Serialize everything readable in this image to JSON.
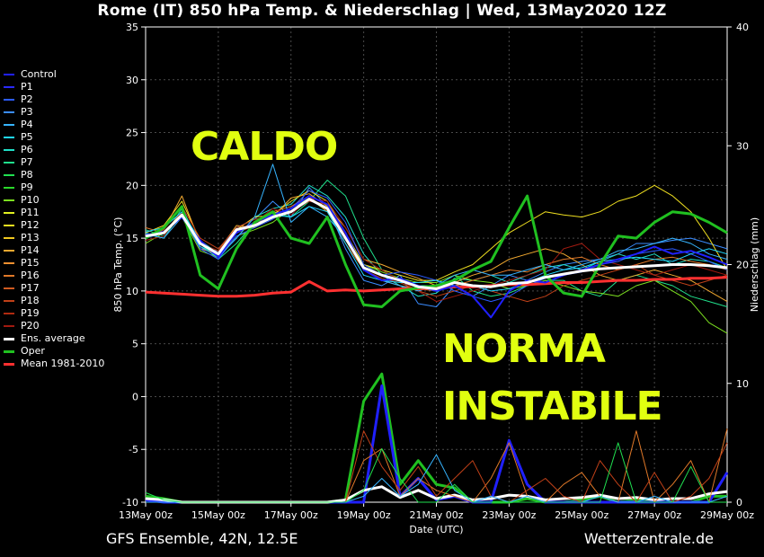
{
  "title": "Rome  (IT)  850 hPa Temp. & Niederschlag | Wed, 13May2020 12Z",
  "footer": {
    "left": "GFS Ensemble, 42N, 12.5E",
    "right": "Wetterzentrale.de"
  },
  "annotations": [
    "CALDO",
    "NORMA",
    "INSTABILE"
  ],
  "chart_data": {
    "type": "line",
    "xlabel": "Date (UTC)",
    "ylabel": "850 hPa Temp. (°C)",
    "y2label": "Niederschlag (mm)",
    "ylim": [
      -10,
      35
    ],
    "y2lim": [
      0,
      40
    ],
    "yticks": [
      -10,
      -5,
      0,
      5,
      10,
      15,
      20,
      25,
      30,
      35
    ],
    "y2ticks": [
      0,
      10,
      20,
      30,
      40
    ],
    "xlim": [
      0,
      16
    ],
    "xtick_positions": [
      0,
      2,
      4,
      6,
      8,
      10,
      12,
      14,
      16
    ],
    "xtick_labels": [
      "13May 00z",
      "15May 00z",
      "17May 00z",
      "19May 00z",
      "21May 00z",
      "23May 00z",
      "25May 00z",
      "27May 00z",
      "29May 00z"
    ],
    "grid": true,
    "legend_position": "left",
    "legend": [
      {
        "name": "Control",
        "color": "#2020ff"
      },
      {
        "name": "P1",
        "color": "#2a2aff"
      },
      {
        "name": "P2",
        "color": "#2c5cff"
      },
      {
        "name": "P3",
        "color": "#3a8cff"
      },
      {
        "name": "P4",
        "color": "#36b4ff"
      },
      {
        "name": "P5",
        "color": "#20d8ff"
      },
      {
        "name": "P6",
        "color": "#20e0c8"
      },
      {
        "name": "P7",
        "color": "#20e08c"
      },
      {
        "name": "P8",
        "color": "#20e050"
      },
      {
        "name": "P9",
        "color": "#2ad82a"
      },
      {
        "name": "P10",
        "color": "#7ce020"
      },
      {
        "name": "P11",
        "color": "#e0f020"
      },
      {
        "name": "P12",
        "color": "#f0e020"
      },
      {
        "name": "P13",
        "color": "#f0c820"
      },
      {
        "name": "P14",
        "color": "#f0a830"
      },
      {
        "name": "P15",
        "color": "#f09030"
      },
      {
        "name": "P16",
        "color": "#e07828"
      },
      {
        "name": "P17",
        "color": "#d05a20"
      },
      {
        "name": "P18",
        "color": "#c04018"
      },
      {
        "name": "P19",
        "color": "#b02a10"
      },
      {
        "name": "P20",
        "color": "#a01a10"
      },
      {
        "name": "Ens. average",
        "color": "#ffffff"
      },
      {
        "name": "Oper",
        "color": "#20c020"
      },
      {
        "name": "Mean 1981-2010",
        "color": "#ff3030"
      }
    ],
    "series": [
      {
        "name": "Ens. average",
        "color": "#ffffff",
        "width": 3,
        "x": [
          0,
          0.5,
          1,
          1.5,
          2,
          2.5,
          3,
          3.5,
          4,
          4.5,
          5,
          5.5,
          6,
          6.5,
          7,
          7.5,
          8,
          8.5,
          9,
          9.5,
          10,
          10.5,
          11,
          11.5,
          12,
          12.5,
          13,
          13.5,
          14,
          14.5,
          15,
          15.5,
          16
        ],
        "values": [
          15.2,
          15.5,
          17.2,
          14.5,
          13.5,
          15.8,
          16.2,
          17.0,
          17.5,
          18.7,
          17.8,
          15.0,
          12.2,
          11.5,
          11.0,
          10.4,
          10.2,
          10.8,
          10.5,
          10.4,
          10.7,
          10.8,
          11.3,
          11.6,
          11.9,
          12.1,
          12.2,
          12.3,
          12.4,
          12.5,
          12.5,
          12.4,
          12.2
        ]
      },
      {
        "name": "Oper",
        "color": "#20c020",
        "width": 3,
        "x": [
          0,
          0.5,
          1,
          1.5,
          2,
          2.5,
          3,
          3.5,
          4,
          4.5,
          5,
          5.5,
          6,
          6.5,
          7,
          7.5,
          8,
          8.5,
          9,
          9.5,
          10,
          10.5,
          11,
          11.5,
          12,
          12.5,
          13,
          13.5,
          14,
          14.5,
          15,
          15.5,
          16
        ],
        "values": [
          15.0,
          16.0,
          18.0,
          11.5,
          10.2,
          14.0,
          16.5,
          17.5,
          15.0,
          14.5,
          17.0,
          12.5,
          8.7,
          8.5,
          10.0,
          10.3,
          10.5,
          11.0,
          12.0,
          12.8,
          16.0,
          19.0,
          11.5,
          9.8,
          9.5,
          12.5,
          15.2,
          15.0,
          16.5,
          17.5,
          17.3,
          16.5,
          15.5
        ]
      },
      {
        "name": "Mean 1981-2010",
        "color": "#ff3030",
        "width": 3,
        "x": [
          0,
          0.5,
          1,
          1.5,
          2,
          2.5,
          3,
          3.5,
          4,
          4.5,
          5,
          5.5,
          6,
          6.5,
          7,
          7.5,
          8,
          8.5,
          9,
          9.5,
          10,
          10.5,
          11,
          11.5,
          12,
          12.5,
          13,
          13.5,
          14,
          14.5,
          15,
          15.5,
          16
        ],
        "values": [
          9.9,
          9.8,
          9.7,
          9.6,
          9.5,
          9.5,
          9.6,
          9.8,
          9.9,
          10.9,
          10.0,
          10.1,
          10.0,
          10.1,
          10.2,
          10.2,
          10.3,
          10.4,
          10.4,
          10.5,
          10.6,
          10.6,
          10.7,
          10.8,
          10.8,
          10.9,
          11.0,
          11.0,
          11.1,
          11.1,
          11.2,
          11.2,
          11.3
        ]
      },
      {
        "name": "Control",
        "color": "#2020ff",
        "width": 2,
        "x": [
          0,
          0.5,
          1,
          1.5,
          2,
          2.5,
          3,
          3.5,
          4,
          4.5,
          5,
          5.5,
          6,
          6.5,
          7,
          7.5,
          8,
          8.5,
          9,
          9.5,
          10,
          10.5,
          11,
          11.5,
          12,
          12.5,
          13,
          13.5,
          14,
          14.5,
          15,
          15.5,
          16
        ],
        "values": [
          15.3,
          15.6,
          17.0,
          14.8,
          13.2,
          15.5,
          16.5,
          17.2,
          17.8,
          19.0,
          18.2,
          15.5,
          12.0,
          11.0,
          11.2,
          10.5,
          10.0,
          10.5,
          9.5,
          7.5,
          10.0,
          11.0,
          10.8,
          11.5,
          12.0,
          12.5,
          13.0,
          13.5,
          14.2,
          13.5,
          13.8,
          13.2,
          12.5
        ]
      }
    ],
    "members": [
      {
        "color": "#3a8cff",
        "values": [
          15.0,
          16.0,
          18.0,
          14.0,
          13.8,
          16.0,
          16.8,
          18.5,
          17.0,
          19.8,
          18.0,
          14.0,
          11.0,
          10.5,
          11.5,
          8.8,
          8.5,
          10.5,
          9.5,
          10.5,
          11.5,
          11.0,
          11.8,
          12.5,
          12.8,
          13.0,
          13.5,
          14.5,
          14.5,
          14.8,
          15.0,
          14.5,
          14.0
        ]
      },
      {
        "color": "#20e0c8",
        "values": [
          15.5,
          15.0,
          17.5,
          14.2,
          13.5,
          15.0,
          17.0,
          17.8,
          18.2,
          20.0,
          19.0,
          17.0,
          13.5,
          11.5,
          10.5,
          9.5,
          9.8,
          11.2,
          11.0,
          11.5,
          10.8,
          11.5,
          12.2,
          12.5,
          12.0,
          12.8,
          13.5,
          13.0,
          13.5,
          12.5,
          13.0,
          12.8,
          12.2
        ]
      },
      {
        "color": "#20e08c",
        "values": [
          15.8,
          15.2,
          17.8,
          14.5,
          13.0,
          14.5,
          16.5,
          17.5,
          17.0,
          18.5,
          20.5,
          19.0,
          15.0,
          12.0,
          11.0,
          10.5,
          10.5,
          11.5,
          10.0,
          9.5,
          9.8,
          10.5,
          11.0,
          11.0,
          10.0,
          9.5,
          11.0,
          11.5,
          11.0,
          10.5,
          9.5,
          9.0,
          8.5
        ]
      },
      {
        "color": "#7ce020",
        "values": [
          14.5,
          15.5,
          17.0,
          13.8,
          13.2,
          15.2,
          15.8,
          16.5,
          17.8,
          18.8,
          17.5,
          15.0,
          12.5,
          11.8,
          11.2,
          10.8,
          10.8,
          11.5,
          11.0,
          10.8,
          10.2,
          10.5,
          11.0,
          10.5,
          10.0,
          9.8,
          9.5,
          10.5,
          11.0,
          10.0,
          9.0,
          7.0,
          6.0
        ]
      },
      {
        "color": "#f0e020",
        "values": [
          15.5,
          16.2,
          18.5,
          14.8,
          13.5,
          15.8,
          17.0,
          17.2,
          18.5,
          19.5,
          18.5,
          15.5,
          12.5,
          12.0,
          11.5,
          11.0,
          11.0,
          11.8,
          12.5,
          14.0,
          15.5,
          16.5,
          17.5,
          17.2,
          17.0,
          17.5,
          18.5,
          19.0,
          20.0,
          19.0,
          17.5,
          15.0,
          12.0
        ]
      },
      {
        "color": "#f0a830",
        "values": [
          15.0,
          15.8,
          19.0,
          14.5,
          13.8,
          16.2,
          16.0,
          17.0,
          18.8,
          19.2,
          18.0,
          16.0,
          13.0,
          12.5,
          11.8,
          11.2,
          10.5,
          10.8,
          11.5,
          12.0,
          13.0,
          13.5,
          14.0,
          13.5,
          12.5,
          11.5,
          11.0,
          11.5,
          12.0,
          11.5,
          11.0,
          10.0,
          9.0
        ]
      },
      {
        "color": "#e07828",
        "values": [
          16.0,
          15.5,
          17.5,
          14.0,
          13.5,
          15.5,
          16.2,
          17.5,
          18.0,
          19.0,
          17.5,
          14.5,
          12.0,
          11.0,
          10.5,
          10.2,
          10.0,
          10.5,
          11.0,
          11.5,
          12.0,
          11.8,
          12.5,
          13.0,
          13.2,
          12.5,
          12.0,
          12.5,
          13.0,
          13.2,
          12.8,
          12.5,
          12.0
        ]
      },
      {
        "color": "#c04018",
        "values": [
          15.2,
          15.8,
          18.0,
          15.0,
          14.0,
          16.0,
          16.8,
          17.0,
          17.5,
          18.5,
          18.2,
          15.2,
          12.0,
          11.2,
          10.8,
          10.0,
          9.5,
          10.0,
          10.5,
          10.0,
          9.5,
          9.0,
          9.5,
          10.5,
          11.0,
          11.5,
          12.0,
          12.5,
          11.5,
          11.0,
          10.5,
          11.0,
          11.5
        ]
      },
      {
        "color": "#a01a10",
        "values": [
          14.8,
          15.2,
          17.5,
          14.5,
          13.8,
          15.8,
          16.5,
          17.8,
          17.2,
          18.8,
          18.5,
          16.0,
          13.0,
          12.0,
          11.0,
          10.0,
          9.0,
          9.5,
          10.0,
          10.5,
          11.0,
          11.5,
          12.0,
          14.0,
          14.5,
          13.0,
          12.5,
          12.0,
          11.5,
          12.0,
          12.5,
          12.0,
          11.5
        ]
      },
      {
        "color": "#2c5cff",
        "values": [
          15.0,
          15.5,
          17.2,
          14.0,
          13.0,
          15.2,
          16.0,
          16.8,
          17.8,
          19.5,
          18.8,
          16.5,
          12.5,
          11.5,
          11.8,
          11.5,
          11.0,
          10.0,
          9.5,
          9.0,
          9.5,
          10.5,
          11.2,
          11.5,
          11.8,
          12.5,
          12.8,
          13.5,
          13.8,
          14.0,
          13.5,
          12.8,
          12.0
        ]
      },
      {
        "color": "#36b4ff",
        "values": [
          15.4,
          15.0,
          17.0,
          14.2,
          13.2,
          15.0,
          17.0,
          22.0,
          16.5,
          18.0,
          17.0,
          15.0,
          12.0,
          11.0,
          10.5,
          10.0,
          10.5,
          11.5,
          12.0,
          11.5,
          11.5,
          12.0,
          12.5,
          12.0,
          12.5,
          13.0,
          13.8,
          14.0,
          14.5,
          15.0,
          14.5,
          13.5,
          13.0
        ]
      },
      {
        "color": "#20d8ff",
        "values": [
          15.6,
          16.0,
          17.5,
          14.8,
          13.5,
          15.5,
          16.5,
          17.2,
          17.0,
          18.0,
          17.5,
          14.5,
          11.5,
          11.0,
          10.8,
          10.8,
          11.0,
          10.5,
          10.5,
          10.0,
          10.2,
          10.8,
          11.5,
          12.0,
          12.2,
          12.8,
          13.0,
          13.2,
          13.0,
          12.8,
          13.5,
          14.0,
          13.5
        ]
      }
    ],
    "precip": [
      {
        "name": "Oper",
        "color": "#20c020",
        "width": 3,
        "values": [
          0.5,
          0.3,
          0,
          0,
          0,
          0,
          0,
          0,
          0,
          0,
          0,
          0.2,
          8.5,
          10.8,
          1.5,
          3.5,
          1.5,
          1.2,
          0,
          0,
          0,
          0.3,
          0,
          0,
          0.2,
          0.5,
          0,
          0.2,
          0,
          0,
          0,
          0.5,
          0.5
        ]
      },
      {
        "name": "Control",
        "color": "#2020ff",
        "width": 3,
        "values": [
          0.2,
          0,
          0,
          0,
          0,
          0,
          0,
          0,
          0,
          0,
          0,
          0,
          0,
          9.8,
          0.5,
          2.0,
          0.2,
          0.5,
          0,
          0,
          5.2,
          1.5,
          0,
          0,
          0,
          0,
          0,
          0,
          0,
          0,
          0,
          0,
          2.5
        ]
      },
      {
        "name": "Ens. average",
        "color": "#ffffff",
        "width": 3,
        "values": [
          0.3,
          0.2,
          0,
          0,
          0,
          0,
          0,
          0,
          0,
          0,
          0,
          0.2,
          1.0,
          1.3,
          0.4,
          1.0,
          0.3,
          0.6,
          0.2,
          0.3,
          0.6,
          0.5,
          0.2,
          0.3,
          0.4,
          0.6,
          0.3,
          0.4,
          0.2,
          0.3,
          0.3,
          0.7,
          0.9
        ]
      },
      {
        "name": "Member",
        "color": "#e07828",
        "width": 1,
        "values": [
          0,
          0,
          0,
          0,
          0,
          0,
          0,
          0,
          0,
          0,
          0,
          0,
          3.5,
          4.5,
          0.5,
          2.0,
          1.0,
          0.5,
          0,
          2.0,
          5.0,
          0.5,
          0,
          1.5,
          2.5,
          0.5,
          0,
          6.0,
          0,
          1.5,
          3.5,
          0,
          6.2
        ]
      },
      {
        "name": "Member",
        "color": "#c04018",
        "width": 1,
        "values": [
          0,
          0,
          0,
          0,
          0,
          0,
          0,
          0,
          0,
          0,
          0,
          0,
          6.0,
          3.0,
          1.0,
          3.0,
          0.5,
          2.0,
          3.5,
          0.5,
          0,
          1.0,
          2.0,
          0.5,
          0,
          3.5,
          1.5,
          0,
          2.5,
          0,
          0.5,
          2.0,
          5.0
        ]
      },
      {
        "name": "Member",
        "color": "#36b4ff",
        "width": 1,
        "values": [
          0,
          0,
          0,
          0,
          0,
          0,
          0,
          0,
          0,
          0,
          0,
          0,
          0.5,
          2.0,
          0.5,
          1.5,
          4.0,
          1.0,
          0,
          0.5,
          0,
          0.5,
          0,
          0,
          0,
          0.5,
          0,
          0,
          0.5,
          0,
          0,
          0,
          0.5
        ]
      },
      {
        "name": "Member",
        "color": "#20e050",
        "width": 1,
        "values": [
          0.8,
          0.2,
          0,
          0,
          0,
          0,
          0,
          0,
          0,
          0,
          0,
          0,
          1.0,
          4.5,
          2.0,
          0,
          0,
          1.5,
          0,
          0,
          0,
          0,
          0,
          0,
          0,
          0,
          5.0,
          0,
          0,
          0,
          3.0,
          0,
          0
        ]
      }
    ]
  }
}
